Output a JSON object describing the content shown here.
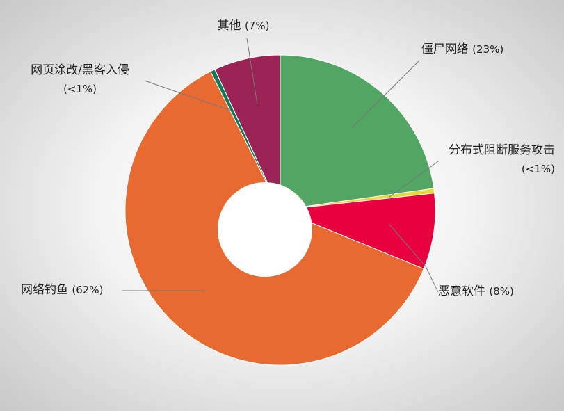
{
  "chart_data": {
    "type": "donut",
    "categories": [
      "僵尸网络",
      "分布式阻断服务攻击",
      "恶意软件",
      "网络钓鱼",
      "网页涂改/黑客入侵",
      "其他"
    ],
    "values": [
      23,
      0.5,
      8,
      62,
      0.5,
      7
    ],
    "value_labels": [
      "(23%)",
      "(<1%)",
      "(8%)",
      "(62%)",
      "(<1%)",
      "(7%)"
    ],
    "colors": [
      "#52a562",
      "#e8d838",
      "#e8003f",
      "#e86a30",
      "#0e7a5c",
      "#9b2356"
    ]
  }
}
